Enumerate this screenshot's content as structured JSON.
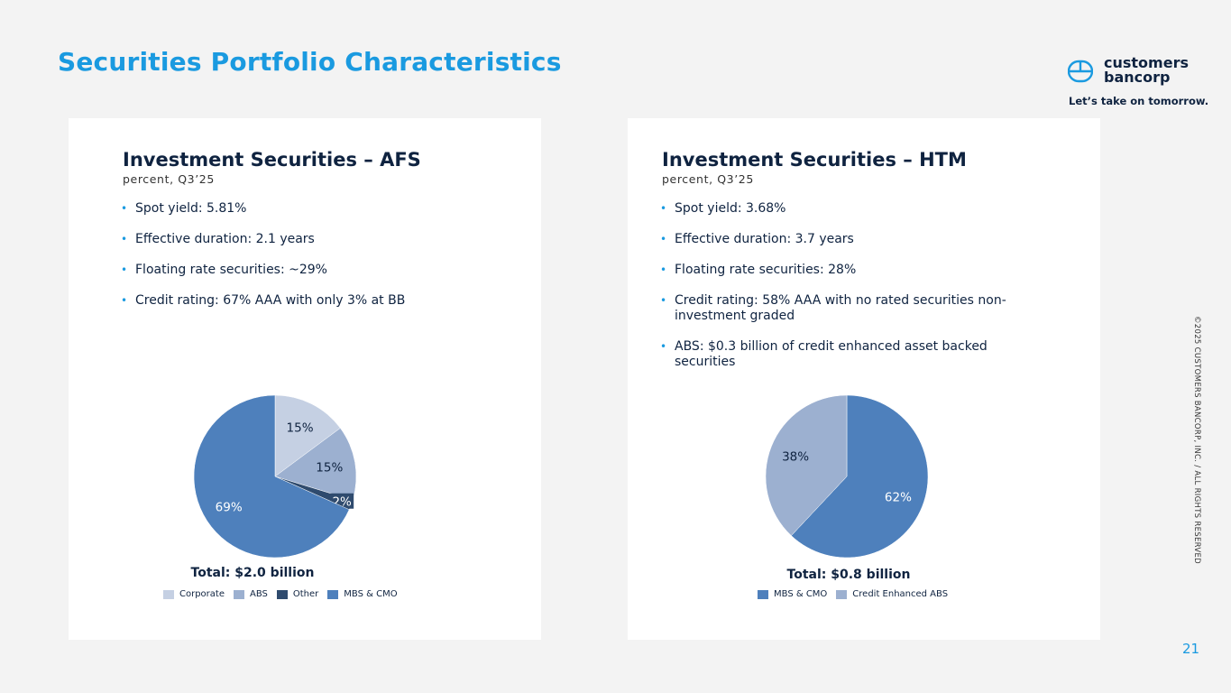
{
  "page": {
    "title": "Securities Portfolio Characteristics",
    "page_number": "21",
    "copyright": "©2025 CUSTOMERS BANCORP, INC. / ALL RIGHTS RESERVED"
  },
  "brand": {
    "name": "customers bancorp",
    "tagline": "Let’s take on tomorrow.",
    "color": "#0f2340"
  },
  "colors": {
    "accent": "#1a9ae0",
    "navy": "#0f2340"
  },
  "afs": {
    "title": "Investment Securities – AFS",
    "subtitle": "percent, Q3’25",
    "bullets": [
      "Spot yield: 5.81%",
      "Effective duration: 2.1 years",
      "Floating rate securities: ~29%",
      "Credit rating: 67% AAA with only 3% at BB"
    ],
    "total": "Total: $2.0 billion"
  },
  "htm": {
    "title": "Investment Securities – HTM",
    "subtitle": "percent, Q3’25",
    "bullets": [
      "Spot yield: 3.68%",
      "Effective duration: 3.7 years",
      "Floating rate securities: 28%",
      "Credit rating: 58% AAA with no rated securities non-investment graded",
      "ABS: $0.3 billion of credit enhanced asset backed securities"
    ],
    "total": "Total: $0.8 billion"
  },
  "chart_data": [
    {
      "type": "pie",
      "title": "Investment Securities – AFS",
      "categories": [
        "Corporate",
        "ABS",
        "Other",
        "MBS & CMO"
      ],
      "values": [
        15,
        15,
        2,
        69
      ],
      "labels": [
        "15%",
        "15%",
        "2%",
        "69%"
      ],
      "colors": [
        "#c5d0e3",
        "#9cb0d0",
        "#2f4b6e",
        "#4e80bc"
      ],
      "label_colors": [
        "#0f2340",
        "#0f2340",
        "#ffffff",
        "#ffffff"
      ],
      "legend_position": "bottom"
    },
    {
      "type": "pie",
      "title": "Investment Securities – HTM",
      "categories": [
        "MBS & CMO",
        "Credit Enhanced ABS"
      ],
      "values": [
        62,
        38
      ],
      "labels": [
        "62%",
        "38%"
      ],
      "colors": [
        "#4e80bc",
        "#9cb0d0"
      ],
      "label_colors": [
        "#ffffff",
        "#0f2340"
      ],
      "legend_position": "bottom"
    }
  ]
}
